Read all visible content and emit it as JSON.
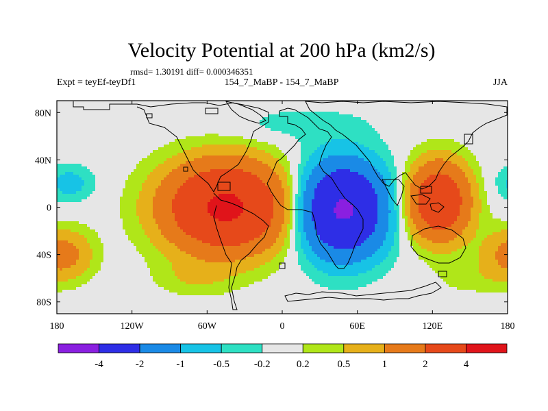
{
  "chart_data": {
    "type": "heatmap",
    "title": "Velocity Potential at 200 hPa (km2/s)",
    "subtitle": "rmsd= 1.30191 diff= 0.000346351",
    "left_label": "Expt = teyEf-teyDf1",
    "center_label": "154_7_MaBP - 154_7_MaBP",
    "right_label": "JJA",
    "x_ticks": [
      {
        "lon": -180,
        "label": "180"
      },
      {
        "lon": -120,
        "label": "120W"
      },
      {
        "lon": -60,
        "label": "60W"
      },
      {
        "lon": 0,
        "label": "0"
      },
      {
        "lon": 60,
        "label": "60E"
      },
      {
        "lon": 120,
        "label": "120E"
      },
      {
        "lon": 180,
        "label": "180"
      }
    ],
    "y_ticks": [
      {
        "lat": 80,
        "label": "80N"
      },
      {
        "lat": 40,
        "label": "40N"
      },
      {
        "lat": 0,
        "label": "0"
      },
      {
        "lat": -40,
        "label": "40S"
      },
      {
        "lat": -80,
        "label": "80S"
      }
    ],
    "xlim": [
      -180,
      180
    ],
    "ylim": [
      -90,
      90
    ],
    "levels": [
      -4,
      -2,
      -1,
      -0.5,
      -0.2,
      0.2,
      0.5,
      1,
      2,
      4
    ],
    "colorbar_labels": [
      "-4",
      "-2",
      "-1",
      "-0.5",
      "-0.2",
      "0.2",
      "0.5",
      "1",
      "2",
      "4"
    ],
    "colors": [
      "#8a1fe0",
      "#2e2ee6",
      "#1a8ae6",
      "#17c3e6",
      "#2ee0c3",
      "#e6e6e6",
      "#b0e619",
      "#e6b01a",
      "#e67a1a",
      "#e6491a",
      "#e0141a"
    ],
    "anomalies": [
      {
        "lon": -45,
        "lat": 0,
        "value": 4.4,
        "sx": 68,
        "sy": 52
      },
      {
        "lon": 48,
        "lat": -2,
        "value": -4.3,
        "sx": 48,
        "sy": 55
      },
      {
        "lon": 125,
        "lat": 5,
        "value": 3.5,
        "sx": 34,
        "sy": 45
      },
      {
        "lon": -170,
        "lat": 20,
        "value": -0.7,
        "sx": 28,
        "sy": 22
      },
      {
        "lon": -170,
        "lat": -40,
        "value": 0.9,
        "sx": 30,
        "sy": 30
      },
      {
        "lon": 175,
        "lat": -40,
        "value": 0.6,
        "sx": 30,
        "sy": 30
      },
      {
        "lon": 10,
        "lat": 70,
        "value": -0.35,
        "sx": 80,
        "sy": 20
      },
      {
        "lon": -70,
        "lat": -60,
        "value": 0.4,
        "sx": 45,
        "sy": 22
      },
      {
        "lon": 150,
        "lat": -60,
        "value": 0.3,
        "sx": 40,
        "sy": 20
      }
    ]
  }
}
